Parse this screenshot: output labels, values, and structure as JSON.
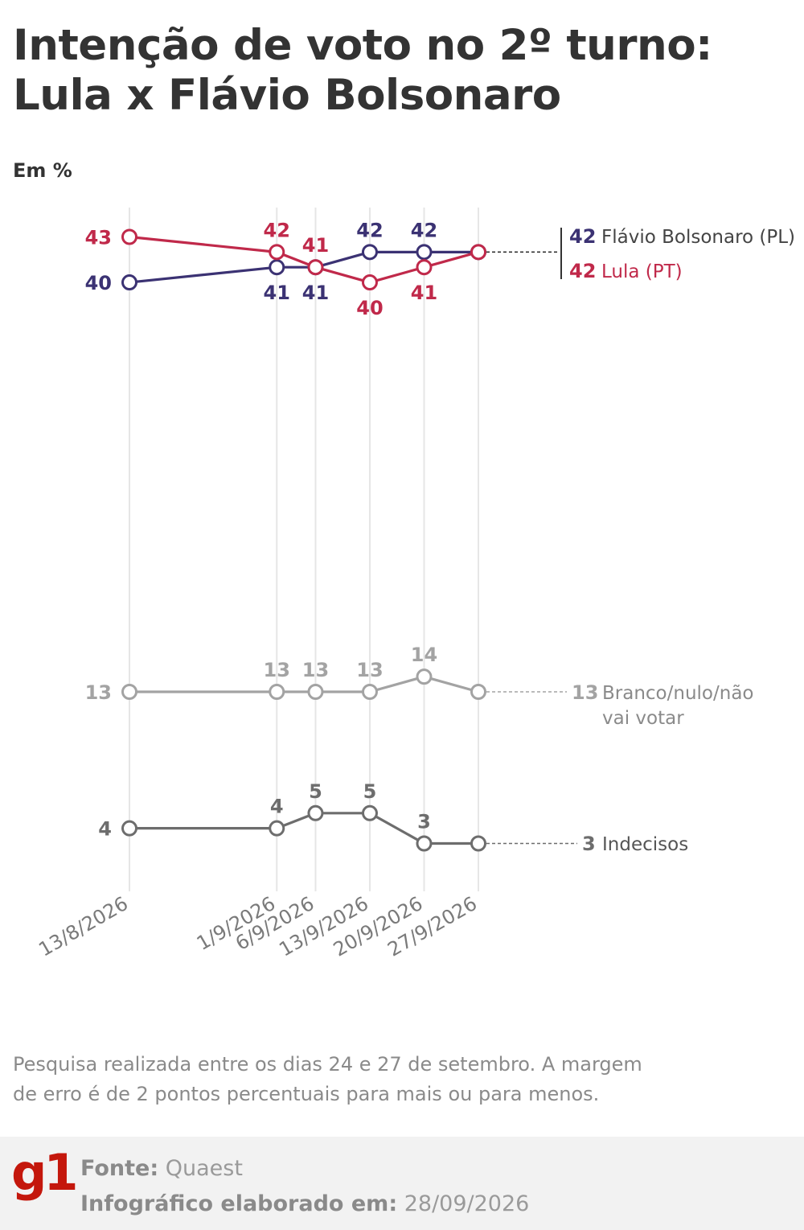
{
  "title_line1": "Intenção de voto no 2º turno:",
  "title_line2": "Lula x Flávio Bolsonaro",
  "unit_label": "Em %",
  "note": "Pesquisa realizada entre os dias 24 e 27 de setembro. A margem de erro é de 2 pontos percentuais para mais ou para menos.",
  "footer": {
    "logo": "g1",
    "source_label": "Fonte:",
    "source_value": "Quaest",
    "made_label": "Infográfico elaborado em:",
    "made_value": "28/09/2026"
  },
  "chart_data": {
    "type": "line",
    "x": [
      "13/8/2026",
      "1/9/2026",
      "6/9/2026",
      "13/9/2026",
      "20/9/2026",
      "27/9/2026"
    ],
    "ylabel": "Em %",
    "grid": "vertical",
    "legend": "right end labels",
    "series": [
      {
        "name": "Flávio Bolsonaro (PL)",
        "color": "#3b3273",
        "values": [
          40,
          41,
          41,
          42,
          42,
          42
        ],
        "labels_pos": [
          "left",
          "below",
          "below",
          "above",
          "above",
          "end"
        ]
      },
      {
        "name": "Lula (PT)",
        "color": "#c0294a",
        "values": [
          43,
          42,
          41,
          40,
          41,
          42
        ],
        "labels_pos": [
          "left",
          "above",
          "above",
          "below",
          "below",
          "end"
        ]
      },
      {
        "name": "Branco/nulo/não vai votar",
        "name_lines": [
          "Branco/nulo/não",
          "vai votar"
        ],
        "color": "#a3a3a3",
        "values": [
          13,
          13,
          13,
          13,
          14,
          13
        ],
        "labels_pos": [
          "left",
          "above",
          "above",
          "above",
          "above",
          "end"
        ]
      },
      {
        "name": "Indecisos",
        "color": "#6d6d6d",
        "values": [
          4,
          4,
          5,
          5,
          3,
          3
        ],
        "labels_pos": [
          "left",
          "above",
          "above",
          "above",
          "above",
          "end"
        ]
      }
    ]
  }
}
